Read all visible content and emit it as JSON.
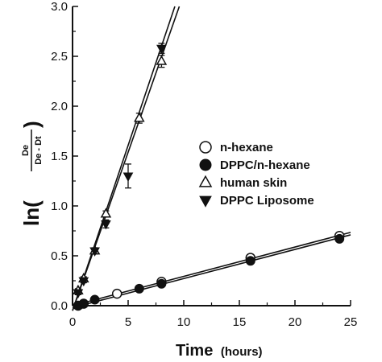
{
  "chart_data": {
    "type": "scatter",
    "title": "",
    "xlabel": "Time",
    "xlabel_unit": "(hours)",
    "ylabel": {
      "prefix": "ln(",
      "numerator": "De",
      "denominator": "De - Dt",
      "suffix": ")"
    },
    "xlim": [
      0,
      25
    ],
    "ylim": [
      0,
      3.0
    ],
    "x_ticks": [
      0,
      5,
      10,
      15,
      20,
      25
    ],
    "y_ticks": [
      "0.0",
      "0.5",
      "1.0",
      "1.5",
      "2.0",
      "2.5",
      "3.0"
    ],
    "y_tick_values": [
      0,
      0.5,
      1.0,
      1.5,
      2.0,
      2.5,
      3.0
    ],
    "grid": false,
    "legend_position": "center-right",
    "series": [
      {
        "name": "n-hexane",
        "marker": "circle-open",
        "points": [
          [
            0.5,
            0.0
          ],
          [
            1.0,
            0.02
          ],
          [
            4.0,
            0.12
          ],
          [
            8.0,
            0.24
          ],
          [
            16.0,
            0.48
          ],
          [
            24.0,
            0.7
          ]
        ],
        "errors": [
          0,
          0,
          0.02,
          0.03,
          0,
          0.02
        ]
      },
      {
        "name": "DPPC/n-hexane",
        "marker": "circle-filled",
        "points": [
          [
            0.5,
            0.0
          ],
          [
            1.0,
            0.02
          ],
          [
            2.0,
            0.06
          ],
          [
            6.0,
            0.17
          ],
          [
            8.0,
            0.22
          ],
          [
            16.0,
            0.45
          ],
          [
            24.0,
            0.67
          ]
        ],
        "errors": [
          0,
          0,
          0,
          0,
          0.02,
          0,
          0.02
        ]
      },
      {
        "name": "human skin",
        "marker": "triangle-up-open",
        "points": [
          [
            0.5,
            0.15
          ],
          [
            1.0,
            0.27
          ],
          [
            2.0,
            0.55
          ],
          [
            3.0,
            0.92
          ],
          [
            6.0,
            1.88
          ],
          [
            8.0,
            2.45
          ]
        ],
        "errors": [
          0.02,
          0.02,
          0.03,
          0.03,
          0.05,
          0.06
        ]
      },
      {
        "name": "DPPC Liposome",
        "marker": "triangle-down-filled",
        "points": [
          [
            0.5,
            0.13
          ],
          [
            1.0,
            0.25
          ],
          [
            2.0,
            0.55
          ],
          [
            3.0,
            0.82
          ],
          [
            5.0,
            1.3
          ],
          [
            8.0,
            2.58
          ]
        ],
        "errors": [
          0.02,
          0.02,
          0.03,
          0.04,
          0.12,
          0.05
        ]
      }
    ],
    "fit_lines": [
      {
        "x": [
          0,
          25
        ],
        "y": [
          0.0,
          0.735
        ]
      },
      {
        "x": [
          0,
          25
        ],
        "y": [
          -0.02,
          0.71
        ]
      },
      {
        "x": [
          0,
          9.6
        ],
        "y": [
          -0.05,
          3.0
        ]
      },
      {
        "x": [
          0,
          9.2
        ],
        "y": [
          -0.05,
          3.0
        ]
      }
    ],
    "colors": {
      "ink": "#111111",
      "background": "#ffffff"
    }
  }
}
